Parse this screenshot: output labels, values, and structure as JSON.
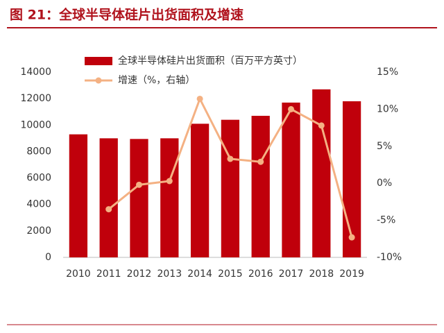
{
  "chart_data": {
    "type": "bar-line",
    "title": "图 21：全球半导体硅片出货面积及增速",
    "categories": [
      "2010",
      "2011",
      "2012",
      "2013",
      "2014",
      "2015",
      "2016",
      "2017",
      "2018",
      "2019"
    ],
    "series": [
      {
        "name": "全球半导体硅片出货面积（百万平方英寸）",
        "type": "bar",
        "color": "#c0000b",
        "values": [
          9300,
          9000,
          8950,
          9000,
          10100,
          10400,
          10700,
          11700,
          12700,
          11800
        ]
      },
      {
        "name": "增速（%，右轴）",
        "type": "line",
        "axis": "y2",
        "color": "#f4b183",
        "values": [
          null,
          -3.5,
          -0.2,
          0.3,
          11.4,
          3.3,
          2.9,
          10.0,
          7.8,
          -7.3
        ]
      }
    ],
    "ylim": [
      0,
      14000
    ],
    "yticks": [
      0,
      2000,
      4000,
      6000,
      8000,
      10000,
      12000,
      14000
    ],
    "y2lim": [
      -10,
      15
    ],
    "y2ticks": [
      {
        "value": -10,
        "label": "-10%"
      },
      {
        "value": -5,
        "label": "-5%"
      },
      {
        "value": 0,
        "label": "0%"
      },
      {
        "value": 5,
        "label": "5%"
      },
      {
        "value": 10,
        "label": "10%"
      },
      {
        "value": 15,
        "label": "15%"
      }
    ],
    "legend": "top-left"
  }
}
